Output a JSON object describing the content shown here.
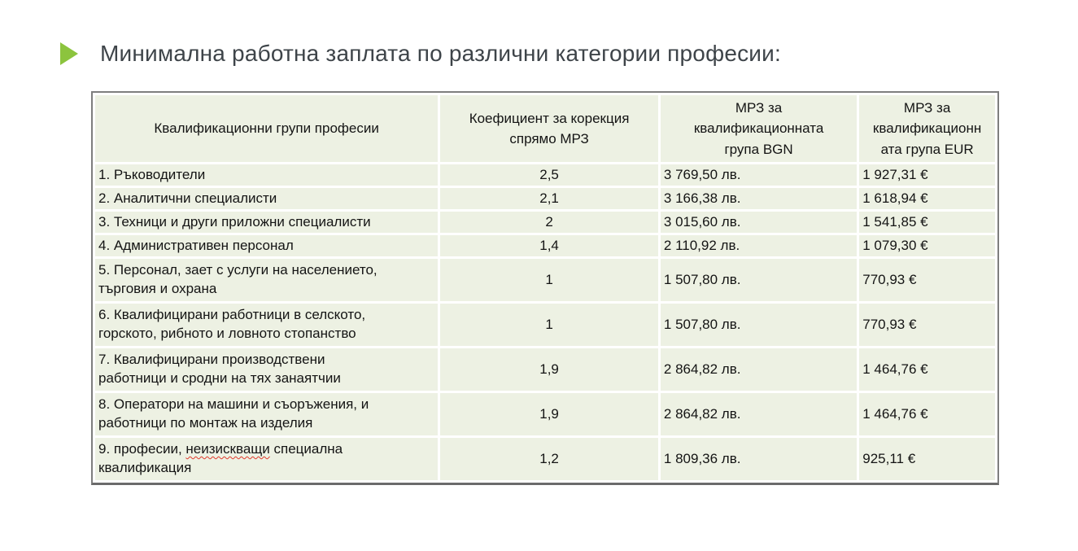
{
  "slide": {
    "title": "Минимална работна заплата по различни категории професии:",
    "accent_color": "#8cc43e",
    "title_color": "#3e4449"
  },
  "table": {
    "cell_background": "#edf1e3",
    "border_color": "#7e7e7e",
    "headers": [
      "Квалификационни групи професии",
      "Коефициент за корекция\nспрямо МРЗ",
      "МРЗ за\nквалификационната\nгрупа BGN",
      "МРЗ за\nквалификационн\nата група EUR"
    ],
    "rows": [
      {
        "name": "1. Ръководители",
        "coef": "2,5",
        "bgn": "3 769,50 лв.",
        "eur": "1 927,31 €"
      },
      {
        "name": "2. Аналитични специалисти",
        "coef": "2,1",
        "bgn": "3 166,38 лв.",
        "eur": "1 618,94 €"
      },
      {
        "name": "3. Техници и други приложни специалисти",
        "coef": "2",
        "bgn": "3 015,60 лв.",
        "eur": "1 541,85 €"
      },
      {
        "name": "4. Административен персонал",
        "coef": "1,4",
        "bgn": "2 110,92 лв.",
        "eur": "1 079,30 €"
      },
      {
        "name": "5. Персонал, зает с услуги на населението,\nтърговия и охрана",
        "coef": "1",
        "bgn": "1 507,80 лв.",
        "eur": "770,93 €"
      },
      {
        "name": "6. Квалифицирани работници в селското,\nгорското, рибното и ловното стопанство",
        "coef": "1",
        "bgn": "1 507,80 лв.",
        "eur": "770,93 €"
      },
      {
        "name": "7. Квалифицирани производствени\nработници и сродни на тях занаятчии",
        "coef": "1,9",
        "bgn": "2 864,82 лв.",
        "eur": "1 464,76 €"
      },
      {
        "name": "8. Оператори на машини и съоръжения, и\nработници по монтаж на изделия",
        "coef": "1,9",
        "bgn": "2 864,82 лв.",
        "eur": "1 464,76 €"
      },
      {
        "name_prefix": "9. професии, ",
        "name_misspelled": "неизискващи",
        "name_suffix": " специална\nквалификация",
        "coef": "1,2",
        "bgn": "1 809,36 лв.",
        "eur": "925,11 €"
      }
    ]
  }
}
